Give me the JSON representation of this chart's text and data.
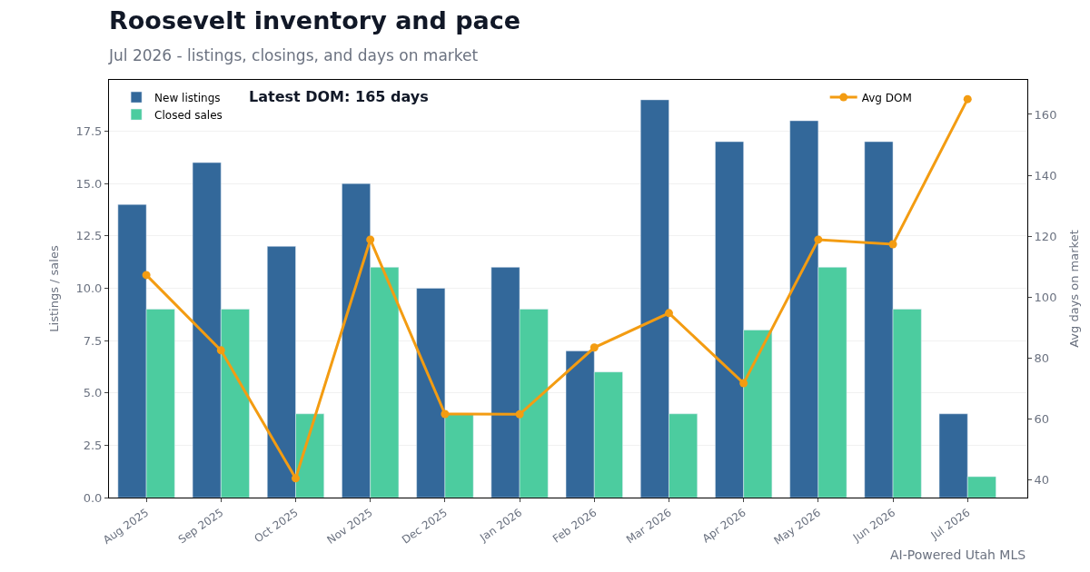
{
  "chart_data": {
    "type": "bar",
    "title": "Roosevelt inventory and pace",
    "subtitle": "Jul 2026 - listings, closings, and days on market",
    "ylabel": "Listings / sales",
    "y2label": "Avg days on market",
    "categories": [
      "Aug 2025",
      "Sep 2025",
      "Oct 2025",
      "Nov 2025",
      "Dec 2025",
      "Jan 2026",
      "Feb 2026",
      "Mar 2026",
      "Apr 2026",
      "May 2026",
      "Jun 2026",
      "Jul 2026"
    ],
    "series": [
      {
        "name": "New listings",
        "color": "#33689a",
        "values": [
          14,
          16,
          12,
          15,
          10,
          11,
          7,
          19,
          17,
          18,
          17,
          4
        ]
      },
      {
        "name": "Closed sales",
        "color": "#4ccc9f",
        "values": [
          9,
          9,
          4,
          11,
          4,
          9,
          6,
          4,
          8,
          11,
          9,
          1
        ]
      },
      {
        "name": "Avg DOM",
        "type": "line",
        "axis": "y2",
        "color": "#f39c12",
        "marker": "circle",
        "values": [
          107.3,
          82.6,
          40.6,
          118.9,
          61.7,
          61.6,
          83.5,
          94.8,
          71.8,
          118.9,
          117.4,
          165
        ]
      }
    ],
    "ylim": [
      0,
      19.95
    ],
    "yticks": [
      {
        "value": 0,
        "label": "0.0"
      },
      {
        "value": 2.5,
        "label": "2.5"
      },
      {
        "value": 5,
        "label": "5.0"
      },
      {
        "value": 7.5,
        "label": "7.5"
      },
      {
        "value": 10,
        "label": "10.0"
      },
      {
        "value": 12.5,
        "label": "12.5"
      },
      {
        "value": 15,
        "label": "15.0"
      },
      {
        "value": 17.5,
        "label": "17.5"
      }
    ],
    "y2lim": [
      34.3,
      171.3
    ],
    "y2ticks": [
      40,
      60,
      80,
      100,
      120,
      140,
      160
    ],
    "grid": "y",
    "legend": "top left",
    "annotations": [
      "Latest DOM: 165 days",
      "AI-Powered Utah MLS"
    ]
  }
}
